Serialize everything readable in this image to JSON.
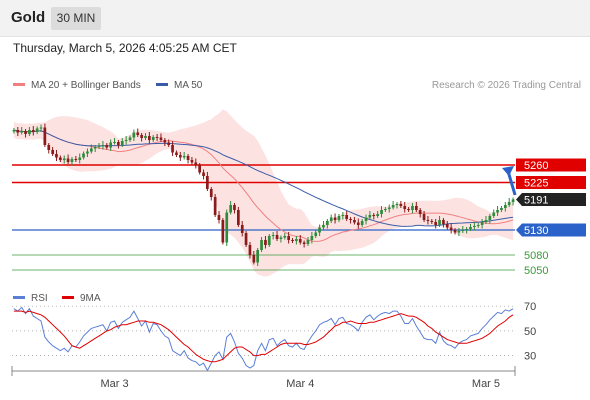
{
  "header": {
    "title": "Gold",
    "timeframe": "30 MIN"
  },
  "datetime": "Thursday, March 5, 2026 4:05:25 AM CET",
  "legend_main": [
    {
      "label": "MA 20 + Bollinger Bands",
      "color": "#f08080"
    },
    {
      "label": "MA 50",
      "color": "#3a5ca8"
    }
  ],
  "legend_rsi": [
    {
      "label": "RSI",
      "color": "#5b7fd6"
    },
    {
      "label": "9MA",
      "color": "#e00000"
    }
  ],
  "copyright": "Research © 2026 Trading Central",
  "colors": {
    "up": "#2e8b3a",
    "down": "#8b1a1a",
    "bb_fill": "#fde2e2",
    "resistance": "#e00000",
    "pivot": "#2a62c9",
    "support": "#3b9a3b"
  },
  "chart_data": [
    {
      "type": "candlestick",
      "ylim": [
        4990,
        5390
      ],
      "x_ticks": [
        "Mar 3",
        "Mar 4",
        "Mar 5"
      ],
      "x_tick_index": [
        26,
        74,
        122
      ],
      "levels": [
        {
          "value": 5260,
          "label": "5260",
          "kind": "resistance"
        },
        {
          "value": 5225,
          "label": "5225",
          "kind": "resistance"
        },
        {
          "value": 5191,
          "label": "5191",
          "kind": "last"
        },
        {
          "value": 5130,
          "label": "5130",
          "kind": "pivot"
        },
        {
          "value": 5080,
          "label": "5080",
          "kind": "support"
        },
        {
          "value": 5050,
          "label": "5050",
          "kind": "support"
        }
      ],
      "target_arrow": {
        "from": 5200,
        "to": 5258
      },
      "closes": [
        5330,
        5325,
        5328,
        5322,
        5330,
        5326,
        5333,
        5335,
        5300,
        5290,
        5282,
        5275,
        5270,
        5273,
        5266,
        5272,
        5270,
        5275,
        5283,
        5287,
        5293,
        5296,
        5298,
        5300,
        5295,
        5305,
        5306,
        5300,
        5308,
        5310,
        5315,
        5325,
        5320,
        5314,
        5318,
        5310,
        5316,
        5315,
        5310,
        5305,
        5300,
        5285,
        5280,
        5275,
        5278,
        5270,
        5265,
        5260,
        5245,
        5238,
        5212,
        5196,
        5160,
        5150,
        5105,
        5165,
        5180,
        5170,
        5140,
        5124,
        5100,
        5080,
        5065,
        5090,
        5110,
        5100,
        5118,
        5120,
        5112,
        5115,
        5118,
        5110,
        5108,
        5112,
        5105,
        5102,
        5110,
        5118,
        5125,
        5135,
        5140,
        5148,
        5155,
        5150,
        5158,
        5160,
        5152,
        5150,
        5145,
        5140,
        5148,
        5155,
        5160,
        5158,
        5162,
        5170,
        5172,
        5175,
        5180,
        5182,
        5178,
        5172,
        5170,
        5178,
        5170,
        5162,
        5150,
        5148,
        5146,
        5140,
        5150,
        5142,
        5135,
        5130,
        5125,
        5128,
        5130,
        5132,
        5136,
        5138,
        5140,
        5146,
        5150,
        5158,
        5165,
        5170,
        5174,
        5180,
        5186,
        5191
      ]
    },
    {
      "type": "line",
      "title": "RSI",
      "ylim": [
        20,
        75
      ],
      "y_ticks": [
        70,
        50,
        30
      ],
      "series": [
        {
          "name": "RSI",
          "values": [
            68,
            66,
            69,
            64,
            68,
            62,
            60,
            58,
            45,
            41,
            38,
            36,
            34,
            36,
            33,
            38,
            37,
            41,
            46,
            49,
            52,
            53,
            54,
            55,
            50,
            57,
            58,
            52,
            57,
            59,
            61,
            66,
            60,
            54,
            58,
            49,
            56,
            55,
            50,
            46,
            44,
            34,
            32,
            30,
            34,
            28,
            26,
            25,
            22,
            24,
            18,
            24,
            30,
            33,
            27,
            45,
            48,
            41,
            32,
            28,
            22,
            20,
            22,
            34,
            40,
            34,
            43,
            44,
            38,
            41,
            43,
            38,
            37,
            40,
            36,
            35,
            41,
            46,
            50,
            55,
            57,
            58,
            60,
            55,
            60,
            61,
            56,
            55,
            53,
            50,
            57,
            61,
            63,
            59,
            62,
            64,
            65,
            64,
            66,
            66,
            62,
            56,
            56,
            60,
            54,
            49,
            44,
            43,
            43,
            40,
            49,
            42,
            39,
            38,
            36,
            40,
            42,
            43,
            46,
            47,
            48,
            52,
            55,
            59,
            62,
            65,
            64,
            67,
            66,
            68
          ]
        },
        {
          "name": "9MA",
          "values": [
            66,
            66,
            66,
            65,
            66,
            65,
            64,
            63,
            61,
            58,
            55,
            52,
            49,
            46,
            42,
            38,
            37,
            36,
            38,
            40,
            42,
            44,
            46,
            48,
            50,
            51,
            53,
            54,
            55,
            55,
            56,
            57,
            58,
            58,
            58,
            57,
            57,
            56,
            55,
            53,
            51,
            48,
            45,
            42,
            39,
            37,
            34,
            31,
            29,
            27,
            26,
            25,
            25,
            26,
            27,
            30,
            33,
            36,
            37,
            37,
            35,
            33,
            30,
            30,
            31,
            31,
            33,
            35,
            37,
            39,
            40,
            40,
            40,
            40,
            40,
            39,
            39,
            40,
            41,
            43,
            45,
            48,
            51,
            54,
            55,
            57,
            57,
            58,
            57,
            56,
            56,
            56,
            57,
            57,
            58,
            59,
            60,
            61,
            62,
            63,
            64,
            63,
            62,
            62,
            61,
            59,
            57,
            54,
            52,
            49,
            47,
            45,
            43,
            42,
            41,
            40,
            40,
            40,
            41,
            42,
            43,
            44,
            46,
            48,
            51,
            54,
            56,
            58,
            61,
            63
          ]
        }
      ]
    }
  ]
}
